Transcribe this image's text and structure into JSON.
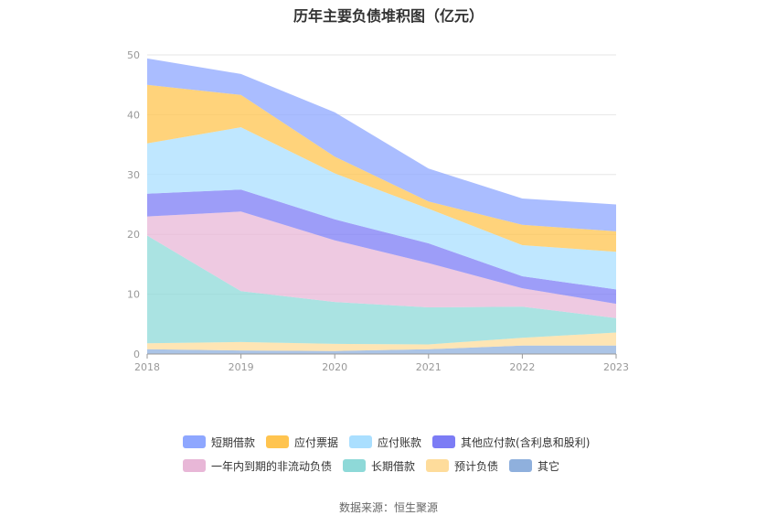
{
  "source_text": "数据来源：恒生聚源",
  "chart_data": {
    "type": "area",
    "stacked": true,
    "title": "历年主要负债堆积图（亿元）",
    "x": [
      "2018",
      "2019",
      "2020",
      "2021",
      "2022",
      "2023"
    ],
    "ylim": [
      0,
      50
    ],
    "yticks": [
      "0",
      "10",
      "20",
      "30",
      "40",
      "50"
    ],
    "grid": true,
    "legend_position": "bottom",
    "series": [
      {
        "name": "其它",
        "color": "#8fb0dd",
        "values": [
          0.8,
          0.6,
          0.5,
          0.8,
          1.4,
          1.4
        ]
      },
      {
        "name": "预计负债",
        "color": "#fedc9b",
        "values": [
          1.0,
          1.4,
          1.2,
          0.8,
          1.3,
          2.2
        ]
      },
      {
        "name": "长期借款",
        "color": "#8ed9d8",
        "values": [
          18.0,
          8.5,
          7.0,
          6.2,
          5.2,
          2.4
        ]
      },
      {
        "name": "一年内到期的非流动负债",
        "color": "#e8b7d7",
        "values": [
          3.2,
          13.3,
          10.3,
          7.4,
          3.1,
          2.4
        ]
      },
      {
        "name": "其他应付款(含利息和股利)",
        "color": "#7c7cf5",
        "values": [
          3.8,
          3.7,
          3.5,
          3.3,
          2.0,
          2.4
        ]
      },
      {
        "name": "应付账款",
        "color": "#aadfff",
        "values": [
          8.4,
          10.4,
          7.7,
          5.8,
          5.2,
          6.3
        ]
      },
      {
        "name": "应付票据",
        "color": "#ffc44f",
        "values": [
          9.8,
          5.4,
          2.8,
          1.2,
          3.4,
          3.4
        ]
      },
      {
        "name": "短期借款",
        "color": "#8ea7ff",
        "values": [
          4.4,
          3.5,
          7.4,
          5.5,
          4.4,
          4.5
        ]
      }
    ],
    "legend_rows": [
      [
        {
          "name": "短期借款",
          "color": "#8ea7ff"
        },
        {
          "name": "应付票据",
          "color": "#ffc44f"
        },
        {
          "name": "应付账款",
          "color": "#aadfff"
        },
        {
          "name": "其他应付款(含利息和股利)",
          "color": "#7c7cf5"
        }
      ],
      [
        {
          "name": "一年内到期的非流动负债",
          "color": "#e8b7d7"
        },
        {
          "name": "长期借款",
          "color": "#8ed9d8"
        },
        {
          "name": "预计负债",
          "color": "#fedc9b"
        },
        {
          "name": "其它",
          "color": "#8fb0dd"
        }
      ]
    ]
  }
}
